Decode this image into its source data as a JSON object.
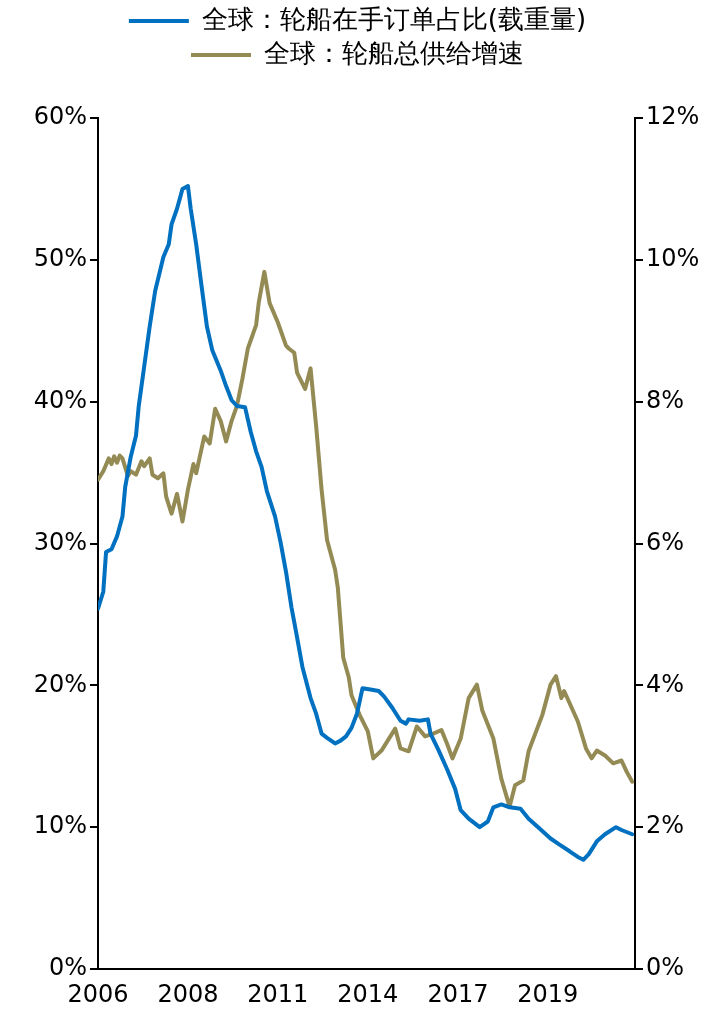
{
  "chart_data": {
    "type": "line",
    "legend": "top",
    "grid": false,
    "marker": "none",
    "line_style": "solid",
    "xlim": [
      "2006-01",
      "2022-06"
    ],
    "xticks": [
      {
        "value": "2006-01",
        "label": "2006"
      },
      {
        "value": "2008-10",
        "label": "2008"
      },
      {
        "value": "2011-07",
        "label": "2011"
      },
      {
        "value": "2014-04",
        "label": "2014"
      },
      {
        "value": "2017-01",
        "label": "2017"
      },
      {
        "value": "2019-10",
        "label": "2019"
      }
    ],
    "ylim": [
      0,
      60
    ],
    "yticks": [
      {
        "value": 0,
        "label": "0%"
      },
      {
        "value": 10,
        "label": "10%"
      },
      {
        "value": 20,
        "label": "20%"
      },
      {
        "value": 30,
        "label": "30%"
      },
      {
        "value": 40,
        "label": "40%"
      },
      {
        "value": 50,
        "label": "50%"
      },
      {
        "value": 60,
        "label": "60%"
      }
    ],
    "y2lim": [
      0,
      12
    ],
    "y2ticks": [
      {
        "value": 0,
        "label": "0%"
      },
      {
        "value": 2,
        "label": "2%"
      },
      {
        "value": 4,
        "label": "4%"
      },
      {
        "value": 6,
        "label": "6%"
      },
      {
        "value": 8,
        "label": "8%"
      },
      {
        "value": 10,
        "label": "10%"
      },
      {
        "value": 12,
        "label": "12%"
      }
    ],
    "series": [
      {
        "name": "全球：轮船在手订单占比(载重量)",
        "color": "#0070c0",
        "x": [
          "2006-01",
          "2006-03",
          "2006-04",
          "2006-06",
          "2006-08",
          "2006-10",
          "2006-11",
          "2007-01",
          "2007-03",
          "2007-04",
          "2007-06",
          "2007-08",
          "2007-10",
          "2008-01",
          "2008-03",
          "2008-04",
          "2008-06",
          "2008-08",
          "2008-10",
          "2008-11",
          "2009-01",
          "2009-03",
          "2009-05",
          "2009-07",
          "2009-10",
          "2009-12",
          "2010-02",
          "2010-04",
          "2010-07",
          "2010-09",
          "2010-11",
          "2011-01",
          "2011-03",
          "2011-06",
          "2011-08",
          "2011-10",
          "2011-12",
          "2012-02",
          "2012-04",
          "2012-07",
          "2012-09",
          "2012-11",
          "2013-01",
          "2013-04",
          "2013-06",
          "2013-08",
          "2013-10",
          "2013-12",
          "2014-02",
          "2014-05",
          "2014-08",
          "2014-10",
          "2015-01",
          "2015-04",
          "2015-06",
          "2015-07",
          "2015-11",
          "2016-02",
          "2016-03",
          "2016-06",
          "2016-09",
          "2016-12",
          "2017-02",
          "2017-05",
          "2017-09",
          "2017-12",
          "2018-02",
          "2018-05",
          "2018-08",
          "2018-12",
          "2019-03",
          "2019-07",
          "2019-11",
          "2020-02",
          "2020-06",
          "2020-09",
          "2020-11",
          "2021-01",
          "2021-04",
          "2021-07",
          "2021-11",
          "2022-01",
          "2022-05"
        ],
        "values": [
          25.4,
          26.6,
          29.4,
          29.6,
          30.5,
          31.9,
          34.0,
          36.1,
          37.6,
          39.7,
          42.5,
          45.3,
          47.8,
          50.2,
          51.1,
          52.5,
          53.6,
          55.0,
          55.2,
          53.6,
          51.1,
          48.2,
          45.3,
          43.6,
          42.2,
          41.1,
          40.1,
          39.7,
          39.6,
          37.9,
          36.5,
          35.4,
          33.7,
          31.9,
          30.1,
          28.0,
          25.5,
          23.4,
          21.3,
          19.1,
          18.0,
          16.6,
          16.3,
          15.9,
          16.1,
          16.4,
          17.0,
          18.0,
          19.8,
          19.7,
          19.6,
          19.2,
          18.4,
          17.5,
          17.3,
          17.6,
          17.5,
          17.6,
          16.6,
          15.4,
          14.1,
          12.7,
          11.2,
          10.6,
          10.0,
          10.4,
          11.4,
          11.6,
          11.4,
          11.3,
          10.6,
          9.9,
          9.2,
          8.8,
          8.3,
          7.9,
          7.7,
          8.1,
          9.0,
          9.5,
          10.0,
          9.8,
          9.5
        ]
      },
      {
        "name": "全球：轮船总供给增速",
        "color": "#948a54",
        "axis": "y2",
        "x": [
          "2006-01",
          "2006-03",
          "2006-05",
          "2006-06",
          "2006-07",
          "2006-08",
          "2006-09",
          "2006-10",
          "2006-12",
          "2007-01",
          "2007-03",
          "2007-05",
          "2007-06",
          "2007-08",
          "2007-09",
          "2007-11",
          "2008-01",
          "2008-02",
          "2008-04",
          "2008-06",
          "2008-08",
          "2008-10",
          "2008-12",
          "2009-01",
          "2009-04",
          "2009-06",
          "2009-08",
          "2009-10",
          "2009-12",
          "2010-02",
          "2010-04",
          "2010-06",
          "2010-08",
          "2010-11",
          "2010-12",
          "2011-02",
          "2011-04",
          "2011-07",
          "2011-10",
          "2011-11",
          "2012-01",
          "2012-02",
          "2012-05",
          "2012-07",
          "2012-09",
          "2012-11",
          "2013-01",
          "2013-04",
          "2013-05",
          "2013-07",
          "2013-09",
          "2013-10",
          "2014-01",
          "2014-04",
          "2014-06",
          "2014-09",
          "2015-02",
          "2015-04",
          "2015-07",
          "2015-10",
          "2016-01",
          "2016-04",
          "2016-07",
          "2016-09",
          "2016-11",
          "2017-02",
          "2017-05",
          "2017-08",
          "2017-10",
          "2018-02",
          "2018-05",
          "2018-08",
          "2018-10",
          "2019-01",
          "2019-03",
          "2019-08",
          "2019-11",
          "2020-01",
          "2020-03",
          "2020-04",
          "2020-09",
          "2020-12",
          "2021-02",
          "2021-04",
          "2021-07",
          "2021-10",
          "2022-01",
          "2022-03",
          "2022-05"
        ],
        "values": [
          6.9,
          7.02,
          7.2,
          7.12,
          7.23,
          7.14,
          7.24,
          7.2,
          6.95,
          7.02,
          6.97,
          7.16,
          7.09,
          7.2,
          6.97,
          6.92,
          6.99,
          6.66,
          6.42,
          6.7,
          6.31,
          6.76,
          7.12,
          6.99,
          7.51,
          7.41,
          7.9,
          7.73,
          7.44,
          7.73,
          7.94,
          8.32,
          8.75,
          9.08,
          9.4,
          9.83,
          9.39,
          9.12,
          8.79,
          8.75,
          8.69,
          8.41,
          8.18,
          8.47,
          7.66,
          6.76,
          6.05,
          5.63,
          5.38,
          4.39,
          4.11,
          3.86,
          3.58,
          3.35,
          2.97,
          3.08,
          3.39,
          3.11,
          3.07,
          3.42,
          3.28,
          3.32,
          3.37,
          3.18,
          2.97,
          3.25,
          3.82,
          4.01,
          3.64,
          3.25,
          2.68,
          2.29,
          2.59,
          2.66,
          3.07,
          3.58,
          4.01,
          4.13,
          3.82,
          3.92,
          3.49,
          3.11,
          2.97,
          3.08,
          3.01,
          2.9,
          2.94,
          2.78,
          2.64
        ]
      }
    ]
  }
}
